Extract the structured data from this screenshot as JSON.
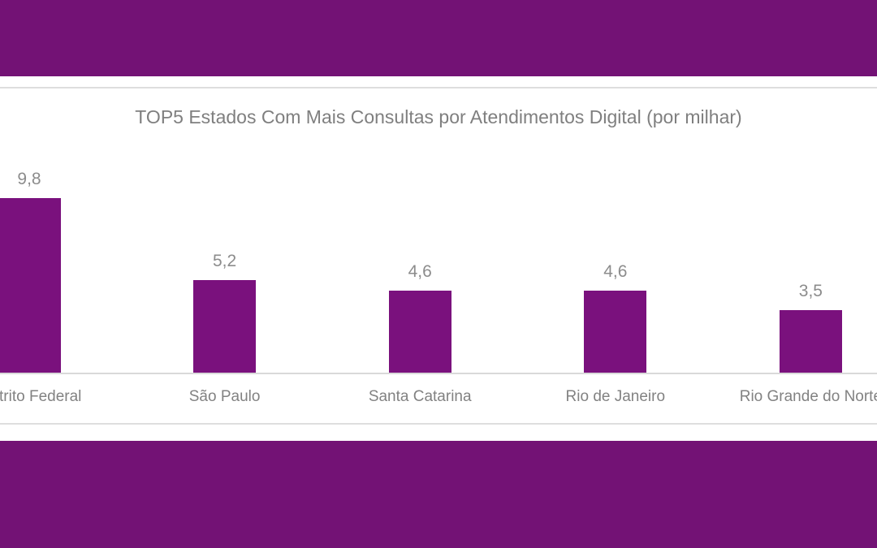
{
  "page": {
    "band_color": "#731275",
    "hairline_color": "#dedede",
    "background_color": "#ffffff"
  },
  "chart_data": {
    "type": "bar",
    "title": "TOP5 Estados Com Mais Consultas por Atendimentos Digital (por milhar)",
    "categories": [
      "Distrito Federal",
      "São Paulo",
      "Santa Catarina",
      "Rio de Janeiro",
      "Rio Grande do Norte"
    ],
    "values": [
      9.8,
      5.2,
      4.6,
      4.6,
      3.5
    ],
    "value_labels": [
      "9,8",
      "5,2",
      "4,6",
      "4,6",
      "3,5"
    ],
    "decimal_style": "comma",
    "xlabel": "",
    "ylabel": "",
    "ylim": [
      0,
      10.5
    ],
    "grid": false,
    "legend": false,
    "y_axis_visible": false,
    "bar_color": "#7a117d",
    "title_color": "#7f7f7f",
    "value_label_color": "#8c8c8c",
    "category_label_color": "#828282",
    "axis_line_color": "#d9d9d9",
    "notes": "First and last category labels are clipped by the image edges (visible as 'rito Federal' and 'Rio Grande do Nor')"
  }
}
